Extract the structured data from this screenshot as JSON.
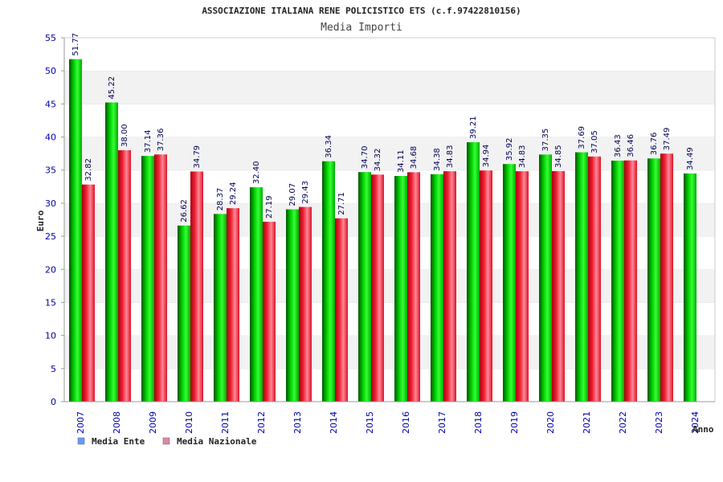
{
  "chart_data": {
    "type": "bar",
    "title": "ASSOCIAZIONE ITALIANA RENE POLICISTICO ETS (c.f.97422810156)",
    "subtitle": "Media Importi",
    "ylabel": "Euro",
    "xlabel": "Anno",
    "ylim": [
      0,
      55
    ],
    "yticks": [
      0,
      5,
      10,
      15,
      20,
      25,
      30,
      35,
      40,
      45,
      50,
      55
    ],
    "grid": true,
    "legend_position": "bottom-left",
    "categories": [
      "2007",
      "2008",
      "2009",
      "2010",
      "2011",
      "2012",
      "2013",
      "2014",
      "2015",
      "2016",
      "2017",
      "2018",
      "2019",
      "2020",
      "2021",
      "2022",
      "2023",
      "2024"
    ],
    "series": [
      {
        "name": "Media Ente",
        "color": "#00bb00",
        "legend_color": "#6699ff",
        "values": [
          51.77,
          45.22,
          37.14,
          26.62,
          28.37,
          32.4,
          29.07,
          36.34,
          34.7,
          34.11,
          34.38,
          39.21,
          35.92,
          37.35,
          37.69,
          36.43,
          36.76,
          34.49
        ],
        "labels": [
          "51.77",
          "45.22",
          "37.14",
          "26.62",
          "28.37",
          "32.40",
          "29.07",
          "36.34",
          "34.70",
          "34.11",
          "34.38",
          "39.21",
          "35.92",
          "37.35",
          "37.69",
          "36.43",
          "36.76",
          "34.49"
        ]
      },
      {
        "name": "Media Nazionale",
        "color": "#ee2233",
        "legend_color": "#dd88aa",
        "values": [
          32.82,
          38.0,
          37.36,
          34.79,
          29.24,
          27.19,
          29.43,
          27.71,
          34.32,
          34.68,
          34.83,
          34.94,
          34.83,
          34.85,
          37.05,
          36.46,
          37.49,
          null
        ],
        "labels": [
          "32.82",
          "38.00",
          "37.36",
          "34.79",
          "29.24",
          "27.19",
          "29.43",
          "27.71",
          "34.32",
          "34.68",
          "34.83",
          "34.94",
          "34.83",
          "34.85",
          "37.05",
          "36.46",
          "37.49",
          ""
        ]
      }
    ]
  }
}
